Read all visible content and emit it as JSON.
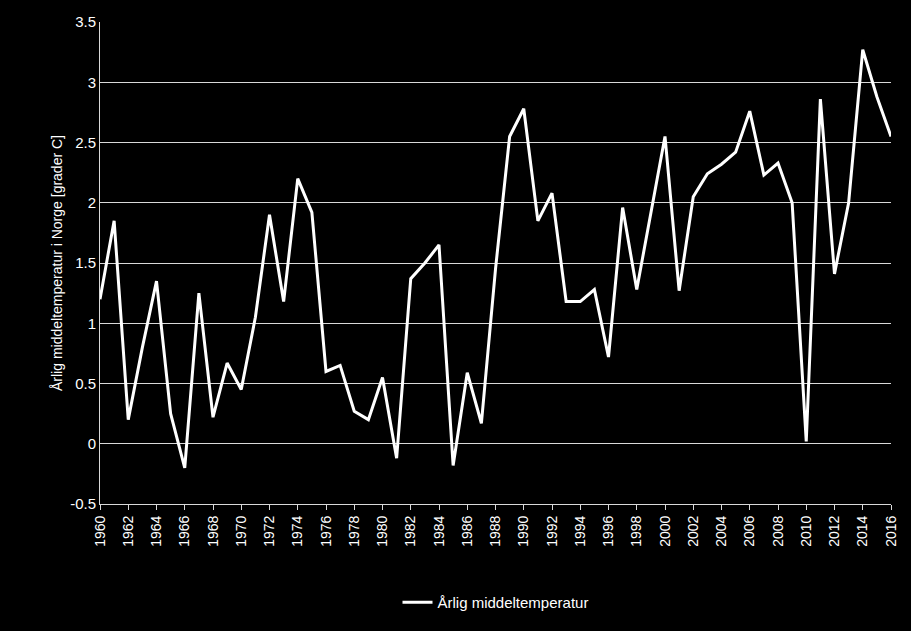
{
  "chart_data": {
    "type": "line",
    "y_label": "Årlig middeltemperatur i Norge [grader C]",
    "x": [
      1960,
      1961,
      1962,
      1963,
      1964,
      1965,
      1966,
      1967,
      1968,
      1969,
      1970,
      1971,
      1972,
      1973,
      1974,
      1975,
      1976,
      1977,
      1978,
      1979,
      1980,
      1981,
      1982,
      1983,
      1984,
      1985,
      1986,
      1987,
      1988,
      1989,
      1990,
      1991,
      1992,
      1993,
      1994,
      1995,
      1996,
      1997,
      1998,
      1999,
      2000,
      2001,
      2002,
      2003,
      2004,
      2005,
      2006,
      2007,
      2008,
      2009,
      2010,
      2011,
      2012,
      2013,
      2014,
      2015,
      2016
    ],
    "series": [
      {
        "name": "Årlig middeltemperatur",
        "color": "#ffffff",
        "values": [
          1.2,
          1.85,
          0.2,
          0.8,
          1.35,
          0.25,
          -0.2,
          1.25,
          0.22,
          0.67,
          0.45,
          1.05,
          1.9,
          1.18,
          2.2,
          1.92,
          0.6,
          0.65,
          0.27,
          0.2,
          0.55,
          -0.12,
          1.37,
          1.5,
          1.65,
          -0.18,
          0.59,
          0.17,
          1.45,
          2.55,
          2.78,
          1.85,
          2.08,
          1.18,
          1.18,
          1.28,
          0.72,
          1.96,
          1.28,
          1.9,
          2.55,
          1.27,
          2.05,
          2.24,
          2.32,
          2.42,
          2.76,
          2.23,
          2.33,
          2.0,
          0.02,
          2.86,
          1.41,
          2.0,
          3.27,
          2.88,
          2.55
        ]
      }
    ],
    "xlim": [
      1960,
      2016
    ],
    "xticks": [
      1960,
      1962,
      1964,
      1966,
      1968,
      1970,
      1972,
      1974,
      1976,
      1978,
      1980,
      1982,
      1984,
      1986,
      1988,
      1990,
      1992,
      1994,
      1996,
      1998,
      2000,
      2002,
      2004,
      2006,
      2008,
      2010,
      2012,
      2014,
      2016
    ],
    "ylim": [
      -0.5,
      3.5
    ],
    "yticks": [
      -0.5,
      0,
      0.5,
      1,
      1.5,
      2,
      2.5,
      3,
      3.5
    ],
    "grid": true,
    "legend": "bottom"
  }
}
